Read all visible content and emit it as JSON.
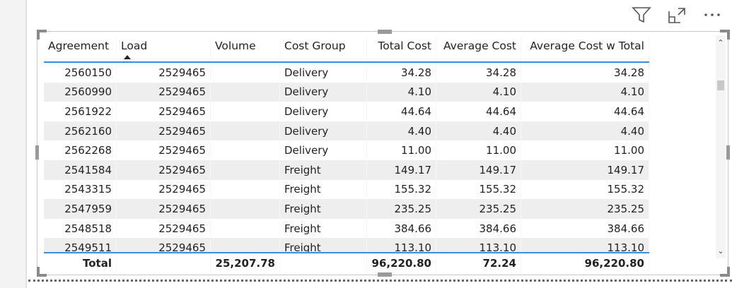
{
  "header_icons": [
    "filter-icon",
    "focus-mode-icon",
    "more-options-icon"
  ],
  "table": {
    "columns": [
      "Agreement",
      "Load",
      "Volume",
      "Cost Group",
      "Total Cost",
      "Average Cost",
      "Average Cost w Total"
    ],
    "sort": {
      "column": "Load",
      "direction": "ascending"
    },
    "rows": [
      [
        "2560150",
        "2529465",
        "",
        "Delivery",
        "34.28",
        "34.28",
        "34.28"
      ],
      [
        "2560990",
        "2529465",
        "",
        "Delivery",
        "4.10",
        "4.10",
        "4.10"
      ],
      [
        "2561922",
        "2529465",
        "",
        "Delivery",
        "44.64",
        "44.64",
        "44.64"
      ],
      [
        "2562160",
        "2529465",
        "",
        "Delivery",
        "4.40",
        "4.40",
        "4.40"
      ],
      [
        "2562268",
        "2529465",
        "",
        "Delivery",
        "11.00",
        "11.00",
        "11.00"
      ],
      [
        "2541584",
        "2529465",
        "",
        "Freight",
        "149.17",
        "149.17",
        "149.17"
      ],
      [
        "2543315",
        "2529465",
        "",
        "Freight",
        "155.32",
        "155.32",
        "155.32"
      ],
      [
        "2547959",
        "2529465",
        "",
        "Freight",
        "235.25",
        "235.25",
        "235.25"
      ],
      [
        "2548518",
        "2529465",
        "",
        "Freight",
        "384.66",
        "384.66",
        "384.66"
      ],
      [
        "2549511",
        "2529465",
        "",
        "Freight",
        "113.10",
        "113.10",
        "113.10"
      ]
    ],
    "total": [
      "Total",
      "",
      "25,207.78",
      "",
      "96,220.80",
      "72.24",
      "96,220.80"
    ]
  },
  "colors": {
    "accent": "#3a8ee6",
    "alt_row": "#eeeeee"
  }
}
